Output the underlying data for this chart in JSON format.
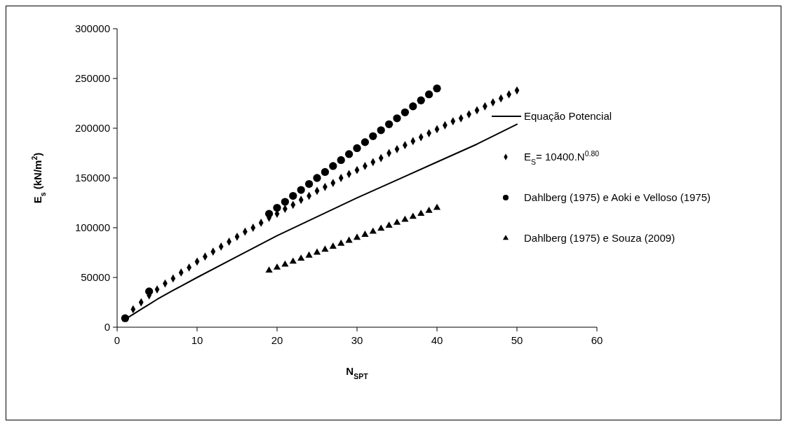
{
  "chart_data": {
    "type": "scatter",
    "xlabel": "N$_{SPT}$",
    "ylabel": "E$_{s}$  (kN/m$^{2}$)",
    "xlim": [
      0,
      60
    ],
    "xticks": [
      0,
      10,
      20,
      30,
      40,
      50,
      60
    ],
    "ylim": [
      0,
      300000
    ],
    "yticks": [
      0,
      50000,
      100000,
      150000,
      200000,
      250000,
      300000
    ],
    "grid": false,
    "legend": "right",
    "series": [
      {
        "name": "Equação Potencial",
        "type": "line",
        "color": "#000000",
        "marker": "none",
        "line_style": "solid",
        "x": [
          1,
          2,
          3,
          4,
          5,
          7,
          10,
          15,
          20,
          25,
          30,
          35,
          40,
          45,
          50
        ],
        "values": [
          8000,
          13000,
          18000,
          23000,
          28000,
          37000,
          50000,
          71000,
          92000,
          111000,
          130000,
          148000,
          166000,
          184000,
          204000
        ]
      },
      {
        "name": "E$_{S}$= 10400.N$^{0.80}$",
        "color": "#000000",
        "marker": "diamond",
        "x": [
          2,
          3,
          4,
          5,
          6,
          7,
          8,
          9,
          10,
          11,
          12,
          13,
          14,
          15,
          16,
          17,
          18,
          19,
          20,
          21,
          22,
          23,
          24,
          25,
          26,
          27,
          28,
          29,
          30,
          31,
          32,
          33,
          34,
          35,
          36,
          37,
          38,
          39,
          40,
          41,
          42,
          43,
          44,
          45,
          46,
          47,
          48,
          49,
          50
        ],
        "values": [
          18000,
          25000,
          32000,
          38000,
          44000,
          49000,
          55000,
          60000,
          66000,
          71000,
          76000,
          81000,
          86000,
          91000,
          96000,
          100000,
          105000,
          110000,
          114000,
          119000,
          123000,
          128000,
          132000,
          137000,
          141000,
          145000,
          150000,
          154000,
          158000,
          162000,
          166000,
          170000,
          175000,
          179000,
          183000,
          187000,
          191000,
          195000,
          199000,
          203000,
          207000,
          210000,
          214000,
          218000,
          222000,
          226000,
          230000,
          234000,
          238000
        ]
      },
      {
        "name": "Dahlberg (1975) e Aoki e Velloso (1975)",
        "color": "#000000",
        "marker": "circle",
        "x": [
          1,
          4,
          19,
          20,
          21,
          22,
          23,
          24,
          25,
          26,
          27,
          28,
          29,
          30,
          31,
          32,
          33,
          34,
          35,
          36,
          37,
          38,
          39,
          40
        ],
        "values": [
          9000,
          36000,
          114000,
          120000,
          126000,
          132000,
          138000,
          144000,
          150000,
          156000,
          162000,
          168000,
          174000,
          180000,
          186000,
          192000,
          198000,
          204000,
          210000,
          216000,
          222000,
          228000,
          234000,
          240000
        ]
      },
      {
        "name": "Dahlberg (1975) e Souza (2009)",
        "color": "#000000",
        "marker": "triangle",
        "x": [
          19,
          20,
          21,
          22,
          23,
          24,
          25,
          26,
          27,
          28,
          29,
          30,
          31,
          32,
          33,
          34,
          35,
          36,
          37,
          38,
          39,
          40
        ],
        "values": [
          57000,
          60000,
          63000,
          66000,
          69000,
          72000,
          75000,
          78000,
          81000,
          84000,
          87000,
          90000,
          93000,
          96000,
          99000,
          102000,
          105000,
          108000,
          111000,
          114000,
          117000,
          120000
        ]
      }
    ]
  }
}
